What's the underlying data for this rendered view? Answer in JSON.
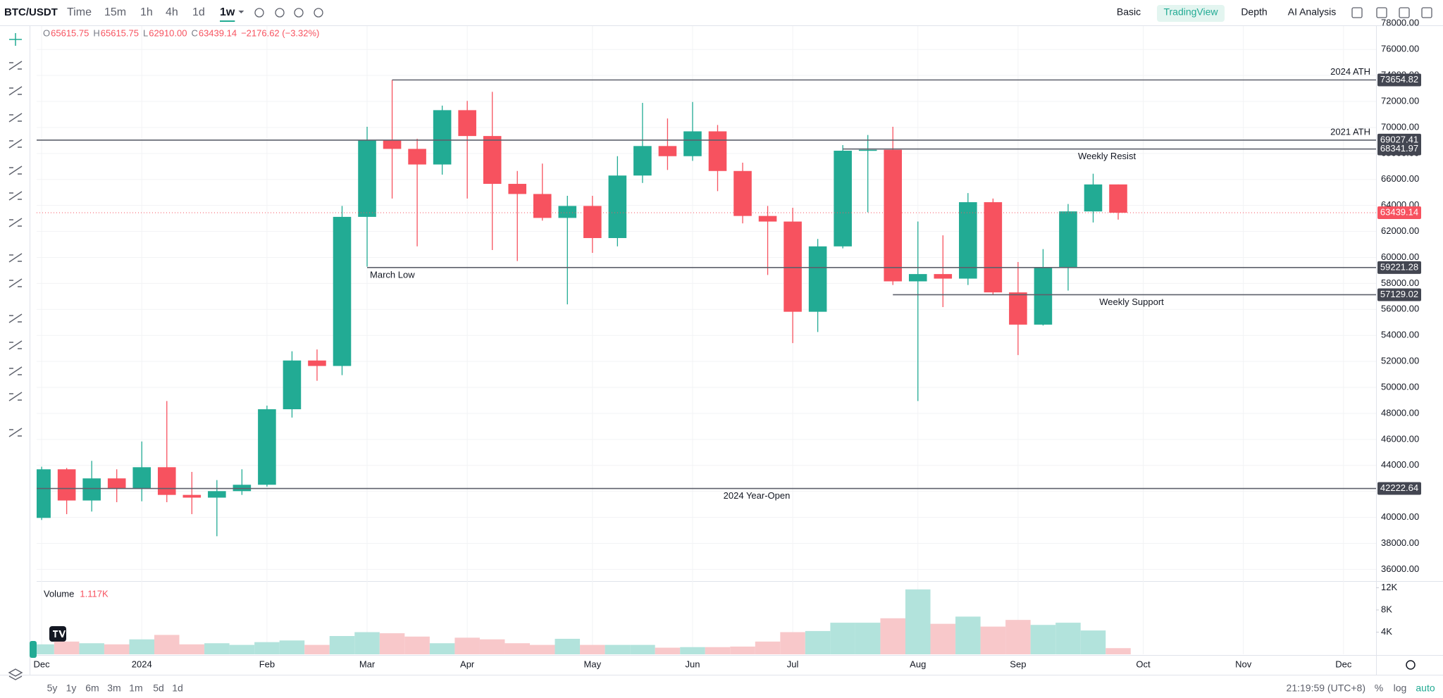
{
  "toolbar": {
    "symbol": "BTC/USDT",
    "intervals": [
      "Time",
      "15m",
      "1h",
      "4h",
      "1d",
      "1w"
    ],
    "views": [
      "Basic",
      "TradingView",
      "Depth",
      "AI Analysis"
    ]
  },
  "chart_data": {
    "type": "candlestick",
    "legend": {
      "ohlc": [
        {
          "key": "O",
          "value": "65615.75"
        },
        {
          "key": "H",
          "value": "65615.75"
        },
        {
          "key": "L",
          "value": "62910.00"
        },
        {
          "key": "C",
          "value": "63439.14"
        }
      ],
      "change": "−2176.62 (−3.32%)"
    },
    "open": [
      39960,
      43700,
      41300,
      43000,
      42250,
      43860,
      41730,
      41520,
      42020,
      42510,
      48320,
      52070,
      51650,
      63120,
      68990,
      68350,
      67150,
      71330,
      69340,
      65660,
      64880,
      63040,
      63960,
      61490,
      66300,
      68570,
      67790,
      69700,
      66650,
      63190,
      62760,
      55820,
      60850,
      68210,
      68280,
      58160,
      58720,
      58370,
      64250,
      57310,
      54830,
      59220,
      63540,
      65615.75
    ],
    "high": [
      43900,
      43800,
      44350,
      43700,
      45840,
      48950,
      43500,
      42870,
      43700,
      48600,
      52780,
      52920,
      63960,
      70050,
      73650,
      69130,
      71680,
      72040,
      72740,
      66650,
      67220,
      64740,
      64740,
      67790,
      71890,
      70690,
      71960,
      70190,
      67290,
      63960,
      63820,
      61420,
      68640,
      69420,
      70050,
      62760,
      61700,
      64950,
      64530,
      59650,
      60640,
      64110,
      66440,
      65615.75
    ],
    "low": [
      39800,
      40250,
      40450,
      41170,
      41240,
      41170,
      40250,
      38550,
      41730,
      42370,
      47680,
      50510,
      50940,
      59290,
      64530,
      60850,
      66370,
      64530,
      60570,
      59720,
      62830,
      56390,
      60350,
      60850,
      65730,
      66730,
      67430,
      65100,
      62620,
      58650,
      53410,
      54260,
      60700,
      63470,
      57880,
      48950,
      56180,
      57880,
      57170,
      52490,
      54760,
      57450,
      62690,
      62910
    ],
    "close": [
      43700,
      41300,
      43000,
      42250,
      43860,
      41730,
      41520,
      42020,
      42510,
      48320,
      52070,
      51650,
      63120,
      68990,
      68350,
      67150,
      71330,
      69340,
      65660,
      64880,
      63040,
      63960,
      61490,
      66300,
      68570,
      67790,
      69700,
      66650,
      63190,
      62760,
      55820,
      60850,
      68210,
      68280,
      58160,
      58720,
      58370,
      64250,
      57310,
      54830,
      59220,
      63540,
      65615.75,
      63439.14
    ],
    "volume": [
      1800,
      2300,
      2000,
      1800,
      2700,
      3500,
      1800,
      2000,
      1700,
      2200,
      2500,
      1700,
      3300,
      4000,
      3800,
      3200,
      2000,
      3000,
      2700,
      2000,
      1700,
      2800,
      1700,
      1700,
      1700,
      1200,
      1300,
      1300,
      1400,
      2300,
      4000,
      4200,
      5700,
      5700,
      6500,
      11700,
      5500,
      6800,
      5000,
      6200,
      5300,
      5700,
      4300,
      1117
    ],
    "volume_legend": {
      "name": "Volume",
      "value_label": "1.117K"
    },
    "up_color": "#22ab94",
    "down_color": "#f7525f",
    "volume_up_color": "#b2e3dc",
    "volume_down_color": "#f8c8ca",
    "xlim": [
      -0.2,
      53.3
    ],
    "xticks": [
      {
        "value": 0,
        "label": "Dec"
      },
      {
        "value": 4,
        "label": "2024"
      },
      {
        "value": 9,
        "label": "Feb"
      },
      {
        "value": 13,
        "label": "Mar"
      },
      {
        "value": 17,
        "label": "Apr"
      },
      {
        "value": 22,
        "label": "May"
      },
      {
        "value": 26,
        "label": "Jun"
      },
      {
        "value": 30,
        "label": "Jul"
      },
      {
        "value": 35,
        "label": "Aug"
      },
      {
        "value": 39,
        "label": "Sep"
      },
      {
        "value": 44,
        "label": "Oct"
      },
      {
        "value": 48,
        "label": "Nov"
      },
      {
        "value": 52,
        "label": "Dec"
      }
    ],
    "ylim": [
      35100,
      77800
    ],
    "yticks": [
      {
        "value": 36000,
        "label": "36000.00"
      },
      {
        "value": 38000,
        "label": "38000.00"
      },
      {
        "value": 40000,
        "label": "40000.00"
      },
      {
        "value": 42000,
        "label": "42000.00"
      },
      {
        "value": 44000,
        "label": "44000.00"
      },
      {
        "value": 46000,
        "label": "46000.00"
      },
      {
        "value": 48000,
        "label": "48000.00"
      },
      {
        "value": 50000,
        "label": "50000.00"
      },
      {
        "value": 52000,
        "label": "52000.00"
      },
      {
        "value": 54000,
        "label": "54000.00"
      },
      {
        "value": 56000,
        "label": "56000.00"
      },
      {
        "value": 58000,
        "label": "58000.00"
      },
      {
        "value": 60000,
        "label": "60000.00"
      },
      {
        "value": 62000,
        "label": "62000.00"
      },
      {
        "value": 64000,
        "label": "64000.00"
      },
      {
        "value": 66000,
        "label": "66000.00"
      },
      {
        "value": 68000,
        "label": "68000.00"
      },
      {
        "value": 70000,
        "label": "70000.00"
      },
      {
        "value": 72000,
        "label": "72000.00"
      },
      {
        "value": 74000,
        "label": "74000.00"
      },
      {
        "value": 76000,
        "label": "76000.00"
      },
      {
        "value": 78000,
        "label": "78000.00"
      }
    ],
    "volume_ylim": [
      0,
      13200
    ],
    "volume_yticks": [
      {
        "value": 4000,
        "label": "4K"
      },
      {
        "value": 8000,
        "label": "8K"
      },
      {
        "value": 12000,
        "label": "12K"
      }
    ],
    "grid": true,
    "levels": [
      {
        "label": "2024 ATH",
        "value": 73654.82,
        "x_start": 14
      },
      {
        "label": "2021 ATH",
        "value": 69027.41
      },
      {
        "label": "Weekly Resist",
        "value": 68341.97,
        "x_start": 32
      },
      {
        "label": "March Low",
        "value": 59221.28,
        "x_start": 13
      },
      {
        "label": "Weekly Support",
        "value": 57129.02,
        "x_start": 34
      },
      {
        "label": "2024 Year-Open",
        "value": 42222.64
      }
    ],
    "level_color": "#5d606b",
    "last_price": 63439.14
  },
  "bottom_bar": {
    "ranges": [
      "5y",
      "1y",
      "6m",
      "3m",
      "1m",
      "5d",
      "1d"
    ],
    "clock": "21:19:59 (UTC+8)",
    "scale_options": [
      "%",
      "log",
      "auto"
    ]
  }
}
